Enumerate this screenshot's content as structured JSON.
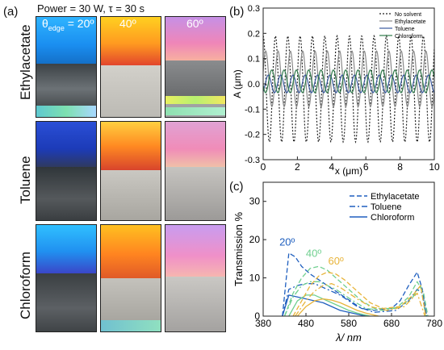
{
  "figure": {
    "panel_a_label": "(a)",
    "panel_b_label": "(b)",
    "panel_c_label": "(c)",
    "header": "Power = 30 W, τ = 30 s",
    "col_label_1_pre": "θ",
    "col_label_1_sub": "edge",
    "col_label_1_post": " = 20º",
    "col_label_2": "40º",
    "col_label_3": "60º",
    "rows": [
      "Ethylacetate",
      "Toluene",
      "Chloroform"
    ]
  },
  "chart_data": [
    {
      "type": "line",
      "xlabel": "x (μm)",
      "ylabel": "A (μm)",
      "xlim": [
        0,
        10
      ],
      "ylim": [
        -0.3,
        0.3
      ],
      "xticks": [
        "0",
        "2",
        "4",
        "6",
        "8",
        "10"
      ],
      "yticks": [
        "-0.3",
        "-0.2",
        "-0.1",
        "0.0",
        "0.1",
        "0.2",
        "0.3"
      ],
      "legend_position": "top-right",
      "series": [
        {
          "name": "No solvent",
          "amplitude": 0.21,
          "period": 0.72,
          "phase": 0.0,
          "offset": -0.02,
          "color": "#222222",
          "style": "dotted"
        },
        {
          "name": "Ethylacetate",
          "amplitude": 0.11,
          "period": 0.72,
          "phase": 0.15,
          "offset": 0.02,
          "color": "#8a8a8a",
          "style": "solid"
        },
        {
          "name": "Toluene",
          "amplitude": 0.035,
          "period": 0.72,
          "phase": 0.3,
          "offset": 0.0,
          "color": "#3a5a9e",
          "style": "solid"
        },
        {
          "name": "Chloroform",
          "amplitude": 0.045,
          "period": 0.72,
          "phase": 0.5,
          "offset": 0.01,
          "color": "#2f7a4a",
          "style": "solid"
        }
      ]
    },
    {
      "type": "line",
      "xlabel": "λ/ nm",
      "ylabel": "Transmission %",
      "xlim": [
        380,
        780
      ],
      "ylim": [
        0,
        35
      ],
      "xticks": [
        "380",
        "480",
        "580",
        "680",
        "780"
      ],
      "yticks": [
        "0",
        "10",
        "20",
        "30"
      ],
      "legend_position": "top-right",
      "legend": [
        {
          "name": "Ethylacetate",
          "style": "dashed"
        },
        {
          "name": "Toluene",
          "style": "dashdot"
        },
        {
          "name": "Chloroform",
          "style": "solid"
        }
      ],
      "annotations": [
        {
          "text": "20º",
          "x": 436,
          "y": 18.5,
          "color": "#1f5fbf"
        },
        {
          "text": "40º",
          "x": 498,
          "y": 15.5,
          "color": "#6fcf8f"
        },
        {
          "text": "60º",
          "x": 550,
          "y": 13.5,
          "color": "#e8b43a"
        }
      ],
      "series": [
        {
          "group": "20º",
          "solvent": "Ethylacetate",
          "color": "#1f5fbf",
          "style": "dashed",
          "x": [
            425,
            440,
            455,
            470,
            490,
            510,
            530,
            550,
            570,
            590,
            610,
            640,
            680,
            700,
            720,
            740,
            752,
            762
          ],
          "y": [
            0,
            16.5,
            15.5,
            13,
            11,
            9.5,
            8,
            6.5,
            5,
            3.5,
            2,
            1.5,
            2,
            4,
            8,
            11.5,
            7,
            0
          ]
        },
        {
          "group": "20º",
          "solvent": "Toluene",
          "color": "#1f5fbf",
          "style": "dashdot",
          "x": [
            425,
            440,
            460,
            480,
            500,
            520,
            540,
            560,
            580,
            600,
            640,
            690,
            720,
            740,
            752,
            762
          ],
          "y": [
            0,
            7,
            8,
            8.5,
            8.5,
            7.5,
            6.5,
            5.5,
            4,
            2.5,
            1,
            1.5,
            4,
            7,
            6,
            0
          ]
        },
        {
          "group": "20º",
          "solvent": "Chloroform",
          "color": "#1f5fbf",
          "style": "solid",
          "x": [
            425,
            440,
            460,
            480,
            500,
            520,
            540,
            560,
            580,
            600,
            620
          ],
          "y": [
            0,
            5.5,
            5,
            4.5,
            4,
            3.5,
            2.5,
            1.5,
            1,
            0.5,
            0
          ]
        },
        {
          "group": "40º",
          "solvent": "Ethylacetate",
          "color": "#6fcf8f",
          "style": "dashed",
          "x": [
            430,
            450,
            470,
            490,
            510,
            530,
            550,
            570,
            590,
            610,
            640,
            690,
            720,
            740,
            755,
            765
          ],
          "y": [
            0,
            6,
            10,
            12.5,
            13,
            12,
            10,
            8,
            6,
            4,
            2,
            2,
            5,
            9,
            6,
            0
          ]
        },
        {
          "group": "40º",
          "solvent": "Toluene",
          "color": "#6fcf8f",
          "style": "dashdot",
          "x": [
            430,
            450,
            470,
            490,
            510,
            530,
            550,
            570,
            590,
            620,
            660,
            700,
            730,
            748,
            760
          ],
          "y": [
            0,
            5,
            8,
            9,
            9,
            8,
            7,
            5.5,
            4,
            2,
            1.5,
            2.5,
            5,
            8,
            0
          ]
        },
        {
          "group": "40º",
          "solvent": "Chloroform",
          "color": "#6fcf8f",
          "style": "solid",
          "x": [
            440,
            460,
            480,
            500,
            520,
            540,
            560,
            580,
            600,
            630
          ],
          "y": [
            0,
            4,
            5.5,
            5.5,
            4.5,
            3.5,
            2.5,
            1.5,
            0.8,
            0
          ]
        },
        {
          "group": "60º",
          "solvent": "Ethylacetate",
          "color": "#e8b43a",
          "style": "dashed",
          "x": [
            450,
            470,
            490,
            510,
            530,
            550,
            570,
            590,
            610,
            630,
            660,
            700,
            730,
            748,
            760
          ],
          "y": [
            0,
            4,
            8,
            10.5,
            11.5,
            11,
            9.5,
            7.5,
            5.5,
            3.5,
            2,
            2.5,
            5.5,
            8,
            0
          ]
        },
        {
          "group": "60º",
          "solvent": "Toluene",
          "color": "#e8b43a",
          "style": "dashdot",
          "x": [
            455,
            480,
            500,
            520,
            540,
            560,
            580,
            600,
            630,
            670,
            710,
            740,
            758
          ],
          "y": [
            0,
            4,
            6.5,
            8,
            8.5,
            7.5,
            6,
            4.5,
            2.5,
            1.5,
            2.5,
            6,
            0
          ]
        },
        {
          "group": "60º",
          "solvent": "Chloroform",
          "color": "#e8b43a",
          "style": "solid",
          "x": [
            460,
            480,
            500,
            520,
            540,
            560,
            580,
            600,
            620,
            650
          ],
          "y": [
            0,
            2.5,
            4,
            4.5,
            4.2,
            3.5,
            2.5,
            1.5,
            0.8,
            0
          ]
        }
      ]
    }
  ]
}
